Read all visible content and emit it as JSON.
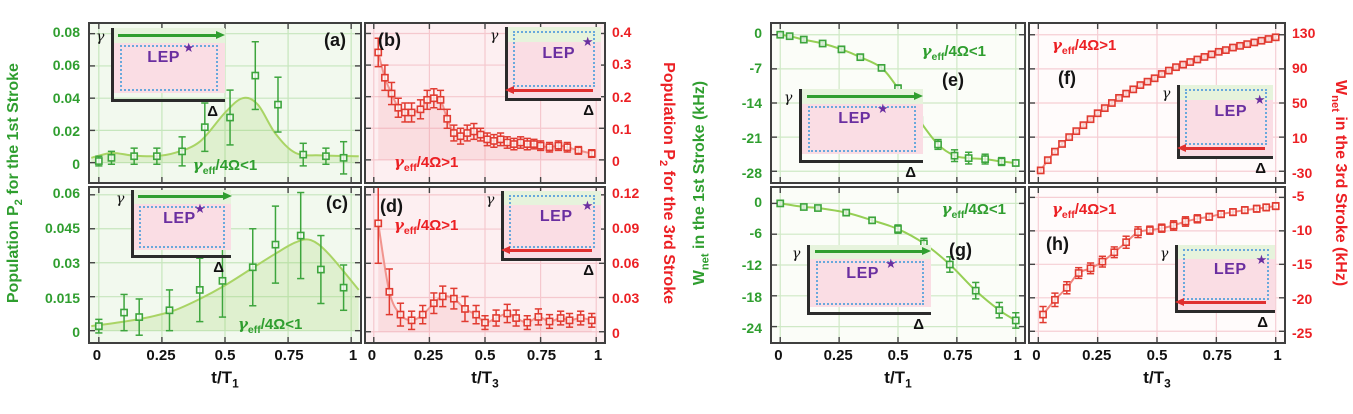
{
  "figure": {
    "population": {
      "left_label": {
        "pre": "Population P",
        "sub": "2",
        "post": " for the 1st Stroke"
      },
      "right_label": {
        "pre": "Population P",
        "sub": "2",
        "post": " for the 3rd Stroke"
      }
    },
    "work": {
      "left_label": {
        "pre": "W",
        "sub": "net",
        "post": " in the 1st Stroke (kHz)"
      },
      "right_label": {
        "pre": "W",
        "sub": "net",
        "post": " in the 3rd Stroke (kHz)"
      }
    },
    "xaxis": {
      "t1": {
        "pre": "t/T",
        "sub": "1"
      },
      "t3": {
        "pre": "t/T",
        "sub": "3"
      }
    }
  },
  "inset": {
    "gamma": "γ",
    "delta": "Δ",
    "lep": "LEP",
    "star": "★"
  },
  "colors": {
    "green_text": "#2f9e2f",
    "red_text": "#ec2024",
    "purple": "#6a2fa0",
    "panel_border": "#3f3f3f",
    "dashed_blue": "#69a8dc",
    "inset_pink": "#fadde4",
    "inset_green_strip": "#e6f3dc"
  },
  "chart_data": [
    {
      "id": "a",
      "letter": "(a)",
      "type": "line",
      "family": "green",
      "annotation": {
        "pre": "γ",
        "sub": "eff",
        "post": "/4Ω<1"
      },
      "xlim": [
        -0.035,
        1.035
      ],
      "ylim": [
        -0.012,
        0.086
      ],
      "xticks": [
        [
          0,
          "0"
        ],
        [
          0.25,
          "0.25"
        ],
        [
          0.5,
          "0.5"
        ],
        [
          0.75,
          "0.75"
        ],
        [
          1,
          "1"
        ]
      ],
      "yticks": [
        [
          0,
          "0"
        ],
        [
          0.02,
          "0.02"
        ],
        [
          0.04,
          "0.04"
        ],
        [
          0.06,
          "0.06"
        ],
        [
          0.08,
          "0.08"
        ]
      ],
      "x": [
        0.0,
        0.05,
        0.14,
        0.23,
        0.33,
        0.42,
        0.52,
        0.62,
        0.71,
        0.81,
        0.9,
        0.97
      ],
      "y": [
        0.001,
        0.003,
        0.004,
        0.004,
        0.007,
        0.022,
        0.028,
        0.054,
        0.036,
        0.005,
        0.004,
        0.003
      ],
      "yerr": [
        0.003,
        0.004,
        0.005,
        0.005,
        0.009,
        0.015,
        0.017,
        0.021,
        0.017,
        0.007,
        0.005,
        0.01
      ],
      "curve": [
        [
          -0.03,
          0.003
        ],
        [
          0.05,
          0.006
        ],
        [
          0.13,
          0.0045
        ],
        [
          0.22,
          0.004
        ],
        [
          0.3,
          0.006
        ],
        [
          0.4,
          0.013
        ],
        [
          0.5,
          0.031
        ],
        [
          0.57,
          0.04
        ],
        [
          0.63,
          0.036
        ],
        [
          0.7,
          0.018
        ],
        [
          0.78,
          0.006
        ],
        [
          0.88,
          0.0045
        ],
        [
          1.03,
          0.004
        ]
      ],
      "area": true,
      "bg": "#f2f9ee",
      "grid": "#c6e6bd",
      "line": "#a9d465",
      "marker": "#3da53d",
      "fill": "rgba(154,208,100,0.22)"
    },
    {
      "id": "b",
      "letter": "(b)",
      "type": "line",
      "family": "red",
      "annotation": {
        "pre": "γ",
        "sub": "eff",
        "post": "/4Ω>1"
      },
      "xlim": [
        -0.035,
        1.035
      ],
      "ylim": [
        -0.07,
        0.43
      ],
      "xticks": [
        [
          0,
          "0"
        ],
        [
          0.25,
          "0.25"
        ],
        [
          0.5,
          "0.5"
        ],
        [
          0.75,
          "0.75"
        ],
        [
          1,
          "1"
        ]
      ],
      "yticks": [
        [
          0,
          "0"
        ],
        [
          0.1,
          "0.1"
        ],
        [
          0.2,
          "0.2"
        ],
        [
          0.3,
          "0.3"
        ],
        [
          0.4,
          "0.4"
        ]
      ],
      "x": [
        0.02,
        0.05,
        0.08,
        0.11,
        0.14,
        0.17,
        0.21,
        0.24,
        0.27,
        0.3,
        0.33,
        0.36,
        0.39,
        0.42,
        0.45,
        0.48,
        0.51,
        0.54,
        0.57,
        0.6,
        0.63,
        0.66,
        0.69,
        0.72,
        0.75,
        0.79,
        0.83,
        0.87,
        0.92,
        0.98
      ],
      "y": [
        0.34,
        0.26,
        0.21,
        0.165,
        0.15,
        0.15,
        0.16,
        0.19,
        0.195,
        0.19,
        0.13,
        0.085,
        0.075,
        0.085,
        0.09,
        0.08,
        0.065,
        0.06,
        0.065,
        0.055,
        0.05,
        0.055,
        0.05,
        0.05,
        0.045,
        0.04,
        0.045,
        0.04,
        0.03,
        0.02
      ],
      "yerr": [
        0.045,
        0.04,
        0.035,
        0.03,
        0.03,
        0.03,
        0.03,
        0.03,
        0.03,
        0.03,
        0.03,
        0.025,
        0.025,
        0.025,
        0.025,
        0.02,
        0.02,
        0.02,
        0.02,
        0.018,
        0.018,
        0.018,
        0.018,
        0.015,
        0.015,
        0.015,
        0.015,
        0.015,
        0.012,
        0.012
      ],
      "area": true,
      "bg": "#fdeff1",
      "grid": "#f5c8ce",
      "line": "#f1948e",
      "marker": "#e13b31",
      "fill": "rgba(240,140,150,0.18)"
    },
    {
      "id": "c",
      "letter": "(c)",
      "type": "line",
      "family": "green",
      "annotation": {
        "pre": "γ",
        "sub": "eff",
        "post": "/4Ω<1"
      },
      "xlim": [
        -0.035,
        1.035
      ],
      "ylim": [
        -0.005,
        0.063
      ],
      "xticks": [
        [
          0,
          "0"
        ],
        [
          0.25,
          "0.25"
        ],
        [
          0.5,
          "0.5"
        ],
        [
          0.75,
          "0.75"
        ],
        [
          1,
          "1"
        ]
      ],
      "yticks": [
        [
          0,
          "0"
        ],
        [
          0.015,
          "0.015"
        ],
        [
          0.03,
          "0.03"
        ],
        [
          0.045,
          "0.045"
        ],
        [
          0.06,
          "0.06"
        ]
      ],
      "x": [
        0.0,
        0.1,
        0.16,
        0.28,
        0.4,
        0.49,
        0.61,
        0.7,
        0.8,
        0.88,
        0.97
      ],
      "y": [
        0.002,
        0.008,
        0.006,
        0.009,
        0.018,
        0.022,
        0.028,
        0.038,
        0.042,
        0.027,
        0.019
      ],
      "yerr": [
        0.003,
        0.008,
        0.008,
        0.009,
        0.014,
        0.016,
        0.017,
        0.017,
        0.019,
        0.015,
        0.01
      ],
      "curve": [
        [
          -0.03,
          0.002
        ],
        [
          0.1,
          0.004
        ],
        [
          0.2,
          0.006
        ],
        [
          0.3,
          0.009
        ],
        [
          0.4,
          0.014
        ],
        [
          0.5,
          0.02
        ],
        [
          0.6,
          0.027
        ],
        [
          0.7,
          0.034
        ],
        [
          0.78,
          0.039
        ],
        [
          0.84,
          0.04
        ],
        [
          0.91,
          0.034
        ],
        [
          1.03,
          0.018
        ]
      ],
      "area": true,
      "bg": "#f2f9ee",
      "grid": "#c6e6bd",
      "line": "#a9d465",
      "marker": "#3da53d",
      "fill": "rgba(154,208,100,0.22)"
    },
    {
      "id": "d",
      "letter": "(d)",
      "type": "line",
      "family": "red",
      "annotation": {
        "pre": "γ",
        "sub": "eff",
        "post": "/4Ω>1"
      },
      "xlim": [
        -0.035,
        1.035
      ],
      "ylim": [
        -0.009,
        0.126
      ],
      "xticks": [
        [
          0,
          "0"
        ],
        [
          0.25,
          "0.25"
        ],
        [
          0.5,
          "0.5"
        ],
        [
          0.75,
          "0.75"
        ],
        [
          1,
          "1"
        ]
      ],
      "yticks": [
        [
          0,
          "0"
        ],
        [
          0.03,
          "0.03"
        ],
        [
          0.06,
          "0.06"
        ],
        [
          0.09,
          "0.09"
        ],
        [
          0.12,
          "0.12"
        ]
      ],
      "x": [
        0.02,
        0.07,
        0.12,
        0.17,
        0.22,
        0.27,
        0.31,
        0.36,
        0.41,
        0.46,
        0.5,
        0.55,
        0.6,
        0.64,
        0.69,
        0.74,
        0.79,
        0.84,
        0.88,
        0.93,
        0.98
      ],
      "y": [
        0.095,
        0.035,
        0.015,
        0.01,
        0.015,
        0.025,
        0.031,
        0.029,
        0.02,
        0.015,
        0.008,
        0.012,
        0.016,
        0.012,
        0.008,
        0.013,
        0.009,
        0.012,
        0.01,
        0.012,
        0.01
      ],
      "yerr": [
        0.035,
        0.02,
        0.01,
        0.008,
        0.008,
        0.009,
        0.009,
        0.009,
        0.011,
        0.008,
        0.006,
        0.007,
        0.008,
        0.007,
        0.006,
        0.007,
        0.006,
        0.006,
        0.006,
        0.006,
        0.006
      ],
      "area": true,
      "bg": "#fdeff1",
      "grid": "#f5c8ce",
      "line": "#f1948e",
      "marker": "#e13b31",
      "fill": "rgba(240,140,150,0.18)"
    },
    {
      "id": "e",
      "letter": "(e)",
      "type": "line",
      "family": "green",
      "annotation": {
        "pre": "γ",
        "sub": "eff",
        "post": "/4Ω<1"
      },
      "xlim": [
        -0.035,
        1.035
      ],
      "ylim": [
        -30.2,
        2.2
      ],
      "xticks": [
        [
          0,
          "0"
        ],
        [
          0.25,
          "0.25"
        ],
        [
          0.5,
          "0.5"
        ],
        [
          0.75,
          "0.75"
        ],
        [
          1,
          "1"
        ]
      ],
      "yticks": [
        [
          0,
          "0"
        ],
        [
          -7,
          "-7"
        ],
        [
          -14,
          "-14"
        ],
        [
          -21,
          "-21"
        ],
        [
          -28,
          "-28"
        ]
      ],
      "x": [
        0.0,
        0.04,
        0.1,
        0.18,
        0.26,
        0.34,
        0.43,
        0.5,
        0.59,
        0.67,
        0.74,
        0.8,
        0.87,
        0.94,
        1.0
      ],
      "y": [
        0.0,
        -0.3,
        -1.0,
        -1.8,
        -3.0,
        -4.6,
        -6.8,
        -11.0,
        -17.5,
        -22.5,
        -24.8,
        -25.3,
        -25.5,
        -26.0,
        -26.3
      ],
      "yerr": [
        0.3,
        0.3,
        0.3,
        0.3,
        0.4,
        0.4,
        0.5,
        0.7,
        0.9,
        1.0,
        1.2,
        1.2,
        1.0,
        0.8,
        0.6
      ],
      "area": false,
      "bg": "#fbfdf8",
      "grid": "#cfe9c6",
      "line": "#96cf55",
      "marker": "#3da53d"
    },
    {
      "id": "f",
      "letter": "(f)",
      "type": "line",
      "family": "red",
      "annotation": {
        "pre": "γ",
        "sub": "eff",
        "post": "/4Ω>1"
      },
      "xlim": [
        -0.035,
        1.035
      ],
      "ylim": [
        -42.6,
        142.6
      ],
      "xticks": [
        [
          0,
          "0"
        ],
        [
          0.25,
          "0.25"
        ],
        [
          0.5,
          "0.5"
        ],
        [
          0.75,
          "0.75"
        ],
        [
          1,
          "1"
        ]
      ],
      "yticks": [
        [
          130,
          "130"
        ],
        [
          90,
          "90"
        ],
        [
          50,
          "50"
        ],
        [
          10,
          "10"
        ],
        [
          -30,
          "-30"
        ]
      ],
      "x": [
        0.01,
        0.04,
        0.07,
        0.1,
        0.13,
        0.16,
        0.19,
        0.22,
        0.25,
        0.28,
        0.31,
        0.34,
        0.37,
        0.4,
        0.43,
        0.46,
        0.49,
        0.52,
        0.55,
        0.58,
        0.61,
        0.64,
        0.67,
        0.7,
        0.73,
        0.76,
        0.79,
        0.82,
        0.85,
        0.88,
        0.91,
        0.94,
        0.97,
        1.0
      ],
      "y": [
        -29,
        -17,
        -7,
        2,
        10,
        17,
        24,
        31,
        38,
        44,
        50,
        56,
        61,
        66,
        71,
        75,
        79,
        84,
        88,
        92,
        95,
        98,
        101,
        104,
        107,
        110,
        112,
        115,
        117,
        119,
        121,
        123,
        125,
        127
      ],
      "yerr": 2,
      "area": false,
      "bg": "#fffbfb",
      "grid": "#f6ced4",
      "line": "#f1857e",
      "marker": "#e13b31"
    },
    {
      "id": "g",
      "letter": "(g)",
      "type": "line",
      "family": "green",
      "annotation": {
        "pre": "γ",
        "sub": "eff",
        "post": "/4Ω<1"
      },
      "xlim": [
        -0.035,
        1.035
      ],
      "ylim": [
        -27,
        3
      ],
      "xticks": [
        [
          0,
          "0"
        ],
        [
          0.25,
          "0.25"
        ],
        [
          0.5,
          "0.5"
        ],
        [
          0.75,
          "0.75"
        ],
        [
          1,
          "1"
        ]
      ],
      "yticks": [
        [
          0,
          "0"
        ],
        [
          -6,
          "-6"
        ],
        [
          -12,
          "-12"
        ],
        [
          -18,
          "-18"
        ],
        [
          -24,
          "-24"
        ]
      ],
      "x": [
        0.0,
        0.1,
        0.16,
        0.28,
        0.39,
        0.5,
        0.61,
        0.72,
        0.83,
        0.93,
        1.0
      ],
      "y": [
        0.0,
        -0.7,
        -0.9,
        -1.8,
        -3.3,
        -5.0,
        -7.8,
        -11.9,
        -17.0,
        -20.8,
        -22.8
      ],
      "yerr": [
        0.3,
        0.3,
        0.3,
        0.4,
        0.5,
        0.8,
        1.0,
        1.5,
        1.6,
        1.5,
        1.5
      ],
      "area": false,
      "bg": "#fbfdf8",
      "grid": "#cfe9c6",
      "line": "#96cf55",
      "marker": "#3da53d"
    },
    {
      "id": "h",
      "letter": "(h)",
      "type": "line",
      "family": "red",
      "annotation": {
        "pre": "γ",
        "sub": "eff",
        "post": "/4Ω>1"
      },
      "xlim": [
        -0.035,
        1.035
      ],
      "ylim": [
        -26.6,
        -3.6
      ],
      "xticks": [
        [
          0,
          "0"
        ],
        [
          0.25,
          "0.25"
        ],
        [
          0.5,
          "0.5"
        ],
        [
          0.75,
          "0.75"
        ],
        [
          1,
          "1"
        ]
      ],
      "yticks": [
        [
          -5,
          "-5"
        ],
        [
          -10,
          "-10"
        ],
        [
          -15,
          "-15"
        ],
        [
          -20,
          "-20"
        ],
        [
          -25,
          "-25"
        ]
      ],
      "x": [
        0.02,
        0.07,
        0.12,
        0.17,
        0.22,
        0.27,
        0.32,
        0.37,
        0.42,
        0.47,
        0.52,
        0.57,
        0.62,
        0.67,
        0.72,
        0.77,
        0.82,
        0.87,
        0.92,
        0.96,
        1.0
      ],
      "y": [
        -22.5,
        -20.3,
        -18.5,
        -16.3,
        -15.6,
        -14.6,
        -13.2,
        -11.7,
        -10.2,
        -9.9,
        -9.6,
        -9.2,
        -8.6,
        -8.2,
        -7.9,
        -7.5,
        -7.2,
        -6.9,
        -6.7,
        -6.5,
        -6.3
      ],
      "yerr": [
        1.2,
        1.0,
        0.9,
        0.8,
        0.8,
        0.8,
        0.8,
        0.9,
        0.8,
        0.6,
        0.6,
        0.7,
        0.7,
        0.6,
        0.5,
        0.5,
        0.5,
        0.5,
        0.5,
        0.5,
        0.5
      ],
      "area": false,
      "bg": "#fffbfb",
      "grid": "#f6ced4",
      "line": "#f1857e",
      "marker": "#e13b31"
    }
  ]
}
